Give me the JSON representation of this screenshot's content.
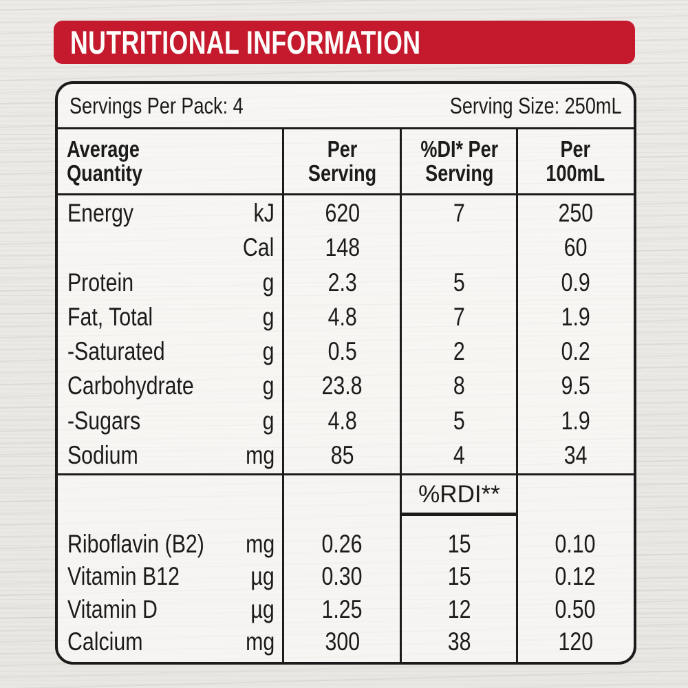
{
  "title_bar": {
    "title": "NUTRITIONAL INFORMATION"
  },
  "colors": {
    "header_red": "#c5192d",
    "header_text": "#fdfdfc",
    "ink": "#1b1b1b"
  },
  "serving_info": {
    "servings_per_pack": "Servings Per Pack: 4",
    "serving_size": "Serving Size: 250mL"
  },
  "column_headers": {
    "average_quantity": "Average\nQuantity",
    "per_serving": "Per\nServing",
    "di_per_serving": "%DI* Per\nServing",
    "per_100ml": "Per\n100mL"
  },
  "main_rows": [
    {
      "label": "Energy",
      "unit": "kJ",
      "per_serving": "620",
      "di_per_serving": "7",
      "per_100ml": "250"
    },
    {
      "label": "",
      "unit": "Cal",
      "per_serving": "148",
      "di_per_serving": "",
      "per_100ml": "60"
    },
    {
      "label": "Protein",
      "unit": "g",
      "per_serving": "2.3",
      "di_per_serving": "5",
      "per_100ml": "0.9"
    },
    {
      "label": "Fat, Total",
      "unit": "g",
      "per_serving": "4.8",
      "di_per_serving": "7",
      "per_100ml": "1.9"
    },
    {
      "label": "-Saturated",
      "unit": "g",
      "per_serving": "0.5",
      "di_per_serving": "2",
      "per_100ml": "0.2"
    },
    {
      "label": "Carbohydrate",
      "unit": "g",
      "per_serving": "23.8",
      "di_per_serving": "8",
      "per_100ml": "9.5"
    },
    {
      "label": "-Sugars",
      "unit": "g",
      "per_serving": "4.8",
      "di_per_serving": "5",
      "per_100ml": "1.9"
    },
    {
      "label": "Sodium",
      "unit": "mg",
      "per_serving": "85",
      "di_per_serving": "4",
      "per_100ml": "34"
    }
  ],
  "rdi_section": {
    "heading": "%RDI**",
    "rows": [
      {
        "label": "Riboflavin (B2)",
        "unit": "mg",
        "per_serving": "0.26",
        "rdi": "15",
        "per_100ml": "0.10"
      },
      {
        "label": "Vitamin B12",
        "unit": "µg",
        "per_serving": "0.30",
        "rdi": "15",
        "per_100ml": "0.12"
      },
      {
        "label": "Vitamin D",
        "unit": "µg",
        "per_serving": "1.25",
        "rdi": "12",
        "per_100ml": "0.50"
      },
      {
        "label": "Calcium",
        "unit": "mg",
        "per_serving": "300",
        "rdi": "38",
        "per_100ml": "120"
      }
    ]
  }
}
